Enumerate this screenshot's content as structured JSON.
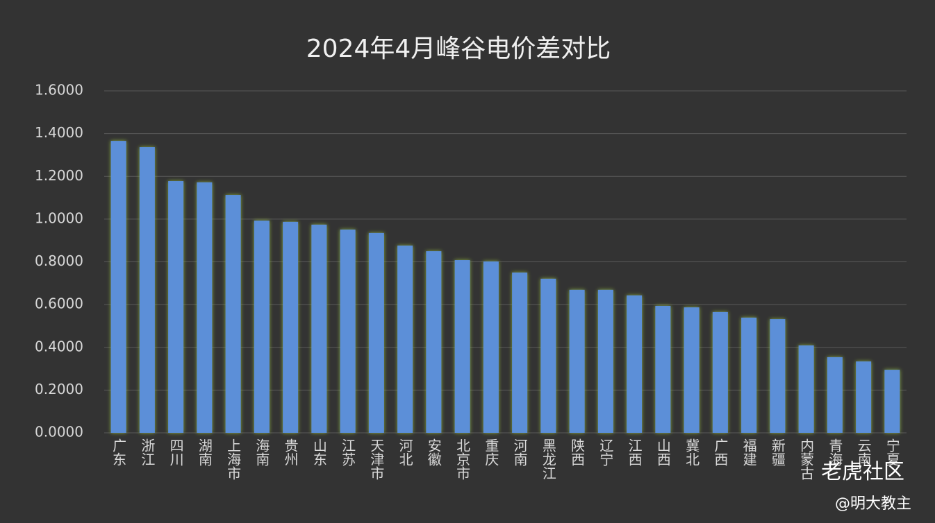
{
  "chart_data": {
    "type": "bar",
    "title": "2024年4月峰谷电价差对比",
    "categories": [
      "广东",
      "浙江",
      "四川",
      "湖南",
      "上海市",
      "海南",
      "贵州",
      "山东",
      "江苏",
      "天津市",
      "河北",
      "安徽",
      "北京市",
      "重庆",
      "河南",
      "黑龙江",
      "陕西",
      "辽宁",
      "江西",
      "山西",
      "冀北",
      "广西",
      "福建",
      "新疆",
      "内蒙古",
      "青海",
      "云南",
      "宁夏"
    ],
    "values": [
      1.366,
      1.337,
      1.178,
      1.172,
      1.113,
      0.993,
      0.987,
      0.974,
      0.951,
      0.935,
      0.876,
      0.85,
      0.808,
      0.802,
      0.75,
      0.721,
      0.669,
      0.669,
      0.643,
      0.594,
      0.587,
      0.565,
      0.539,
      0.532,
      0.409,
      0.354,
      0.334,
      0.295
    ],
    "color": "#5b8fd8",
    "ylim": [
      0,
      1.6
    ],
    "yticks": [
      {
        "value": 0,
        "label": "0.0000"
      },
      {
        "value": 0.2,
        "label": "0.2000"
      },
      {
        "value": 0.4,
        "label": "0.4000"
      },
      {
        "value": 0.6,
        "label": "0.6000"
      },
      {
        "value": 0.8,
        "label": "0.8000"
      },
      {
        "value": 1.0,
        "label": "1.0000"
      },
      {
        "value": 1.2,
        "label": "1.2000"
      },
      {
        "value": 1.4,
        "label": "1.4000"
      },
      {
        "value": 1.6,
        "label": "1.6000"
      }
    ],
    "grid": true
  },
  "watermark": {
    "brand": "老虎社区",
    "author": "@明大教主"
  }
}
